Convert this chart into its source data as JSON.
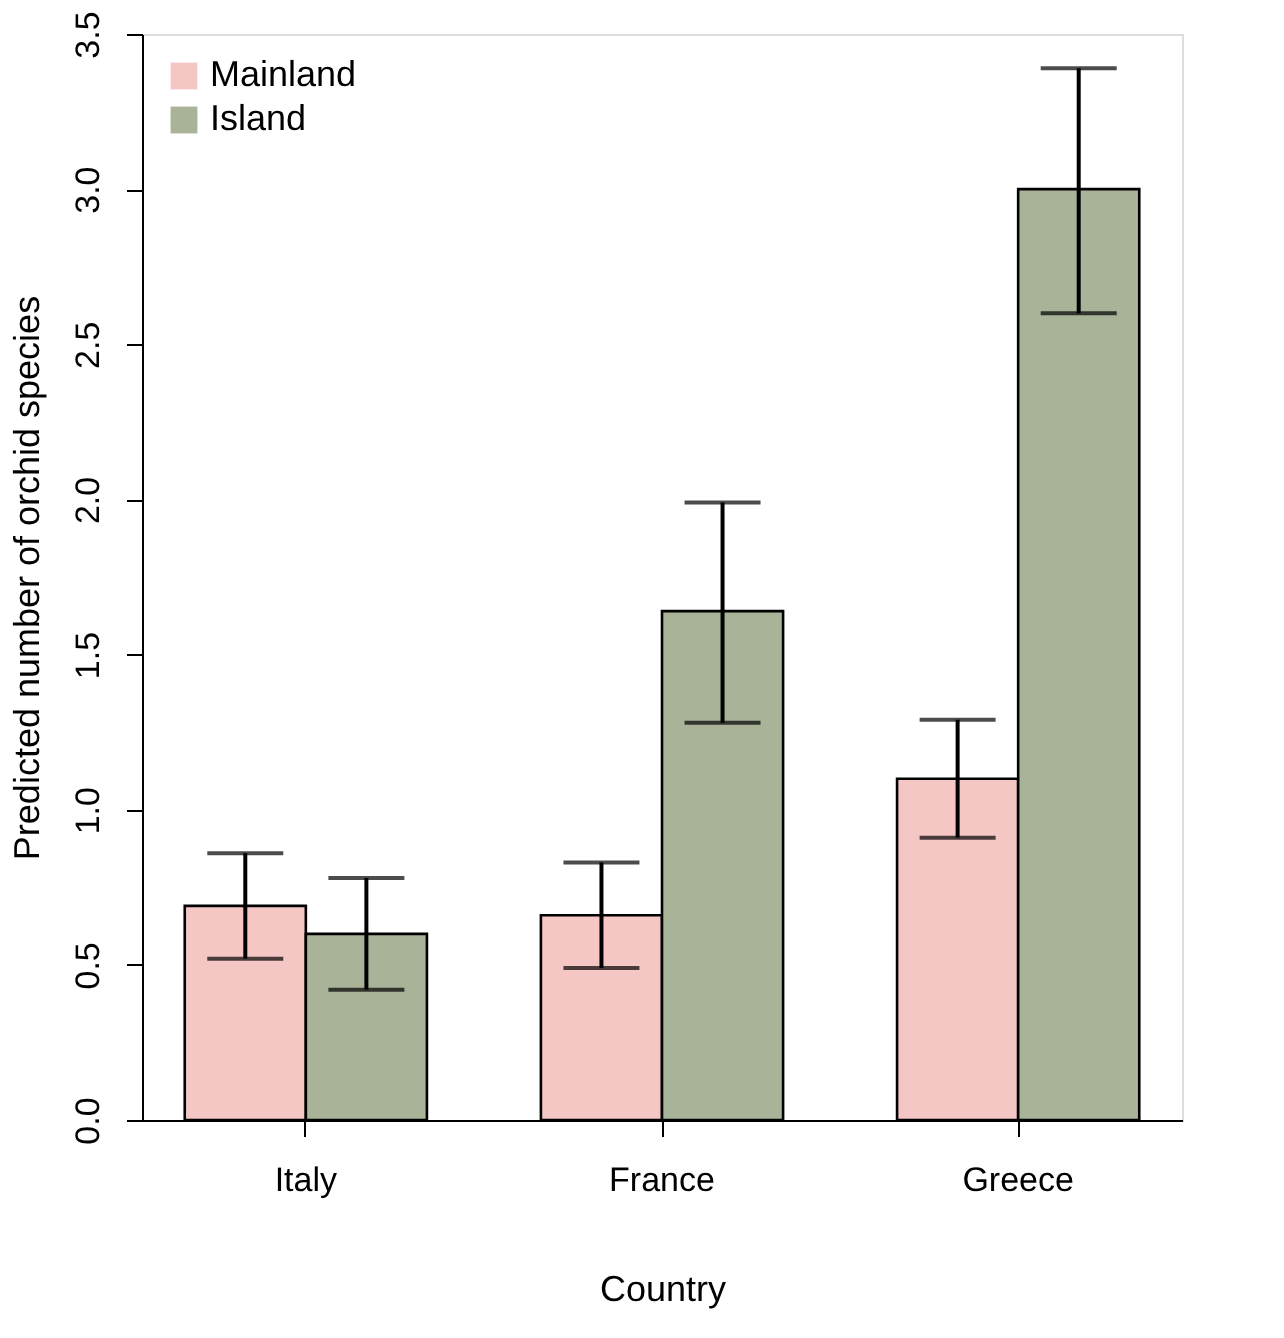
{
  "chart_data": {
    "type": "bar",
    "xlabel": "Country",
    "ylabel": "Predicted number of orchid species",
    "categories": [
      "Italy",
      "France",
      "Greece"
    ],
    "series": [
      {
        "name": "Mainland",
        "color": "#f4c6c4",
        "values": [
          0.69,
          0.66,
          1.1
        ],
        "errors": [
          [
            0.52,
            0.86
          ],
          [
            0.49,
            0.83
          ],
          [
            0.91,
            1.29
          ]
        ]
      },
      {
        "name": "Island",
        "color": "#a8b398",
        "values": [
          0.6,
          1.64,
          3.0
        ],
        "errors": [
          [
            0.42,
            0.78
          ],
          [
            1.28,
            1.99
          ],
          [
            2.6,
            3.39
          ]
        ]
      }
    ],
    "ylim": [
      0,
      3.5
    ],
    "yticks": [
      {
        "value": 0,
        "label": "0.0"
      },
      0.5,
      {
        "value": 1,
        "label": "1.0"
      },
      1.5,
      {
        "value": 2,
        "label": "2.0"
      },
      2.5,
      {
        "value": 3,
        "label": "3.0"
      },
      3.5
    ],
    "legend": "top left",
    "grid": false
  }
}
